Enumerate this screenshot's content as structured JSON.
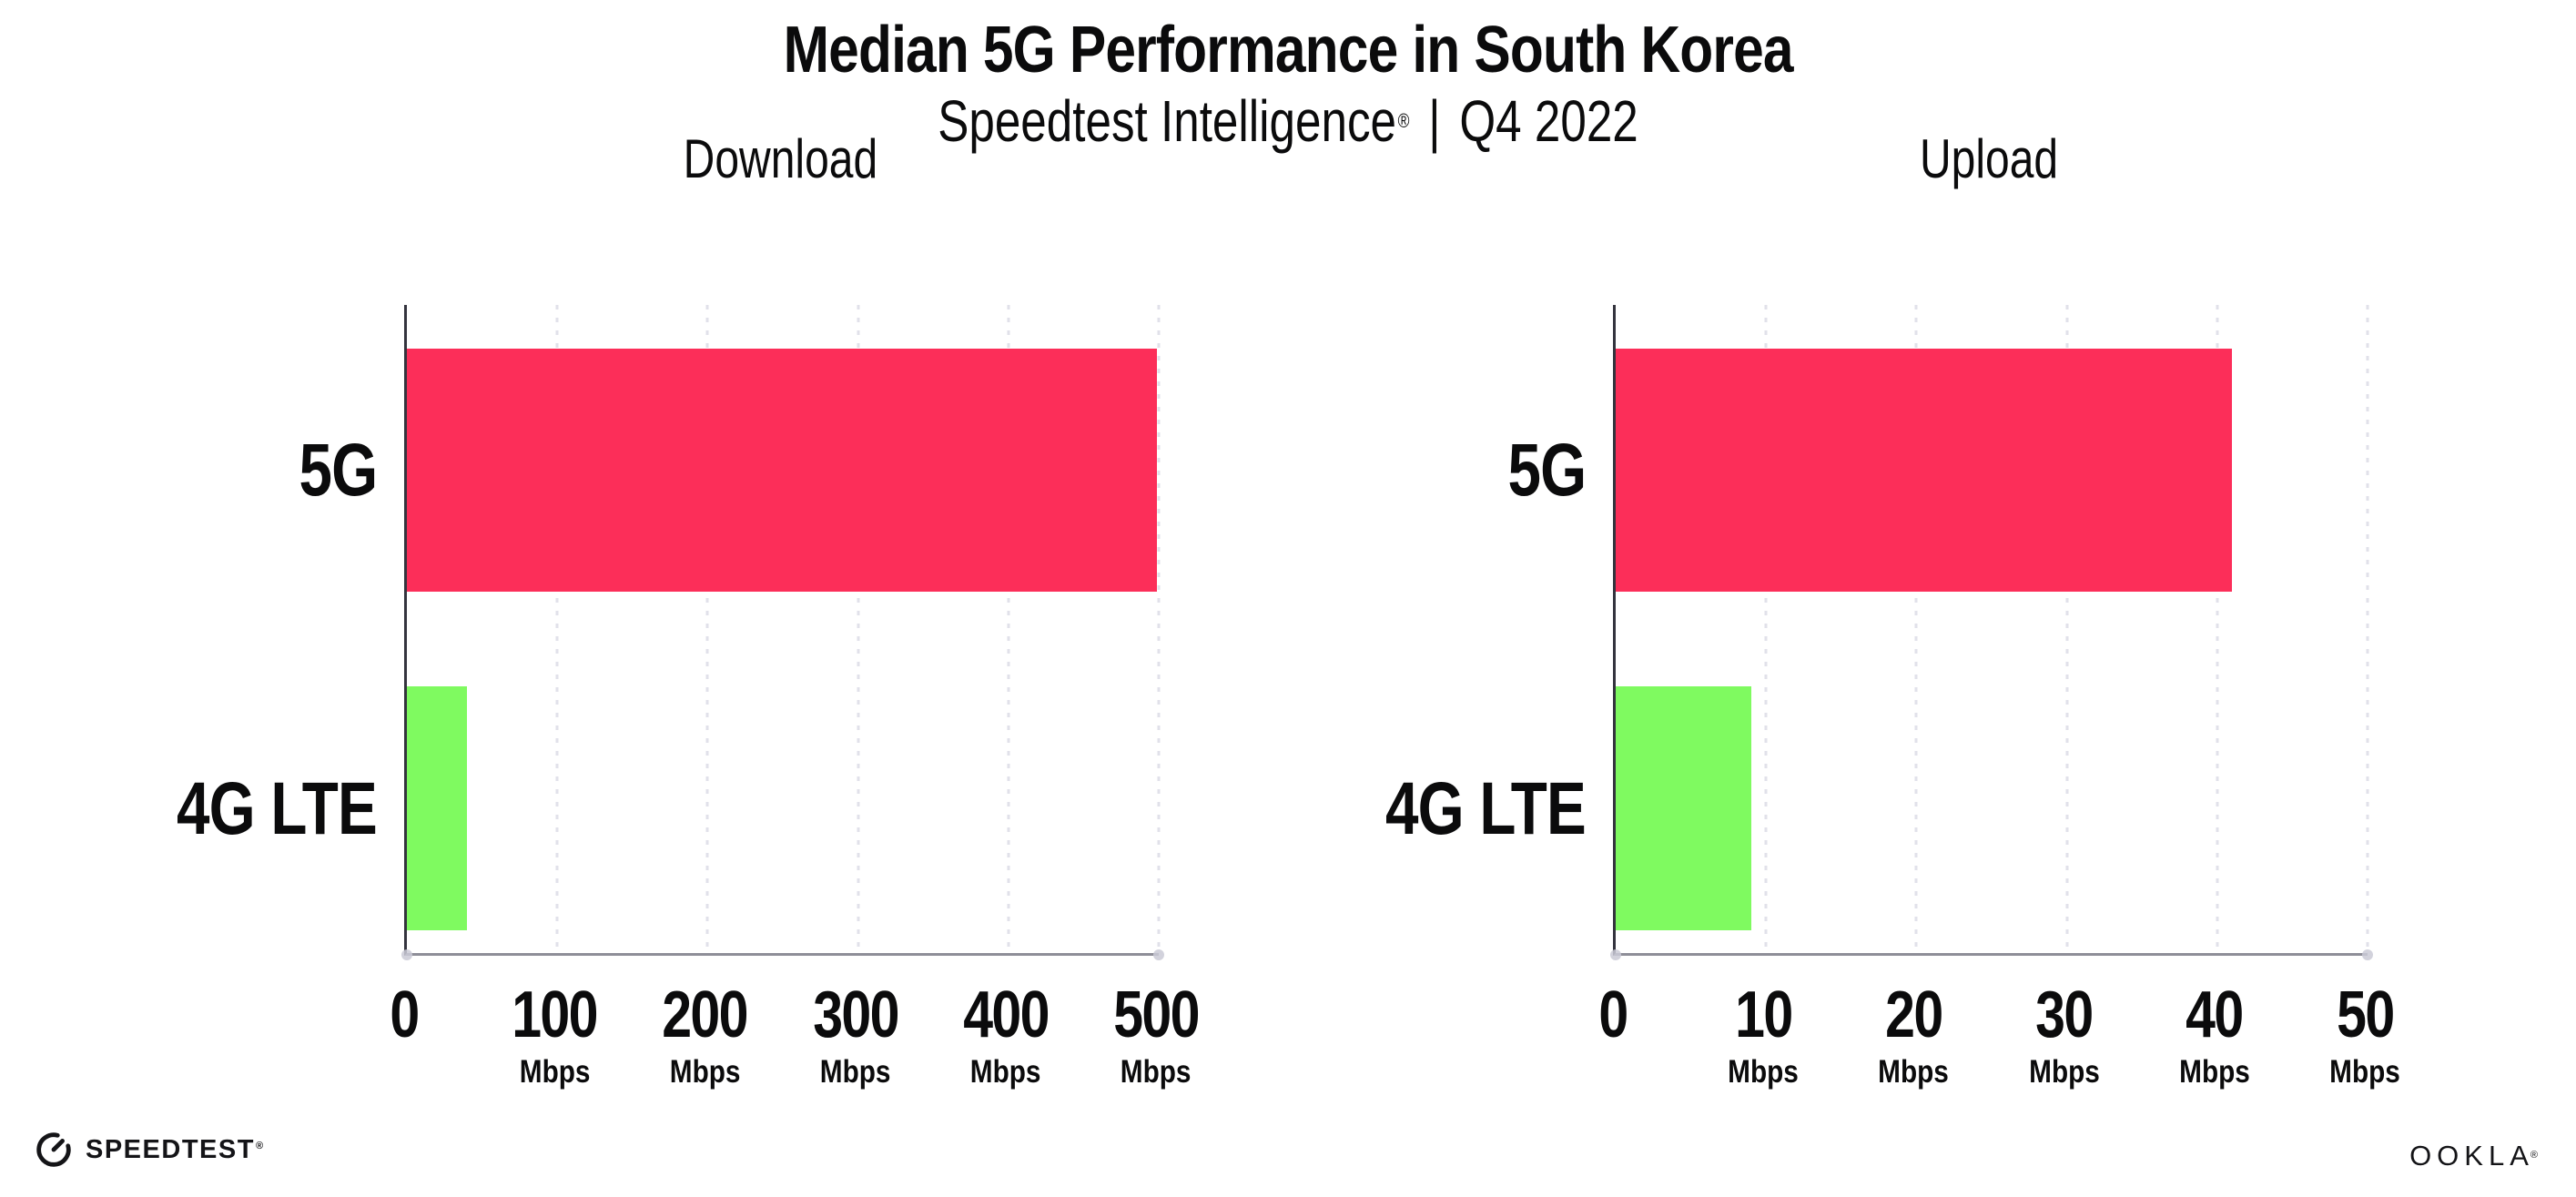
{
  "header": {
    "title": "Median 5G Performance in South Korea",
    "subtitle_brand": "Speedtest Intelligence",
    "subtitle_registered": "®",
    "subtitle_separator": "|",
    "subtitle_period": "Q4 2022"
  },
  "colors": {
    "bar_5g": "#FC2E59",
    "bar_4g_lte": "#7FFA60",
    "gridline": "#E1E1EA",
    "axis_left": "#34343E",
    "axis_bottom": "#8E8E98",
    "text": "#0B0B0C"
  },
  "chart_data": [
    {
      "type": "bar",
      "orientation": "horizontal",
      "title": "Download",
      "categories": [
        "5G",
        "4G LTE"
      ],
      "values": [
        499,
        40
      ],
      "unit": "Mbps",
      "xlim": [
        0,
        500
      ],
      "xticks": [
        0,
        100,
        200,
        300,
        400,
        500
      ],
      "tick_unit_label": "Mbps",
      "bar_colors": [
        "#FC2E59",
        "#7FFA60"
      ],
      "grid": "vertical-dotted",
      "legend": "none"
    },
    {
      "type": "bar",
      "orientation": "horizontal",
      "title": "Upload",
      "categories": [
        "5G",
        "4G LTE"
      ],
      "values": [
        41,
        9
      ],
      "unit": "Mbps",
      "xlim": [
        0,
        50
      ],
      "xticks": [
        0,
        10,
        20,
        30,
        40,
        50
      ],
      "tick_unit_label": "Mbps",
      "bar_colors": [
        "#FC2E59",
        "#7FFA60"
      ],
      "grid": "vertical-dotted",
      "legend": "none"
    }
  ],
  "footer": {
    "speedtest_label": "SPEEDTEST",
    "speedtest_mark": "®",
    "ookla_label": "OOKLA",
    "ookla_mark": "®"
  }
}
